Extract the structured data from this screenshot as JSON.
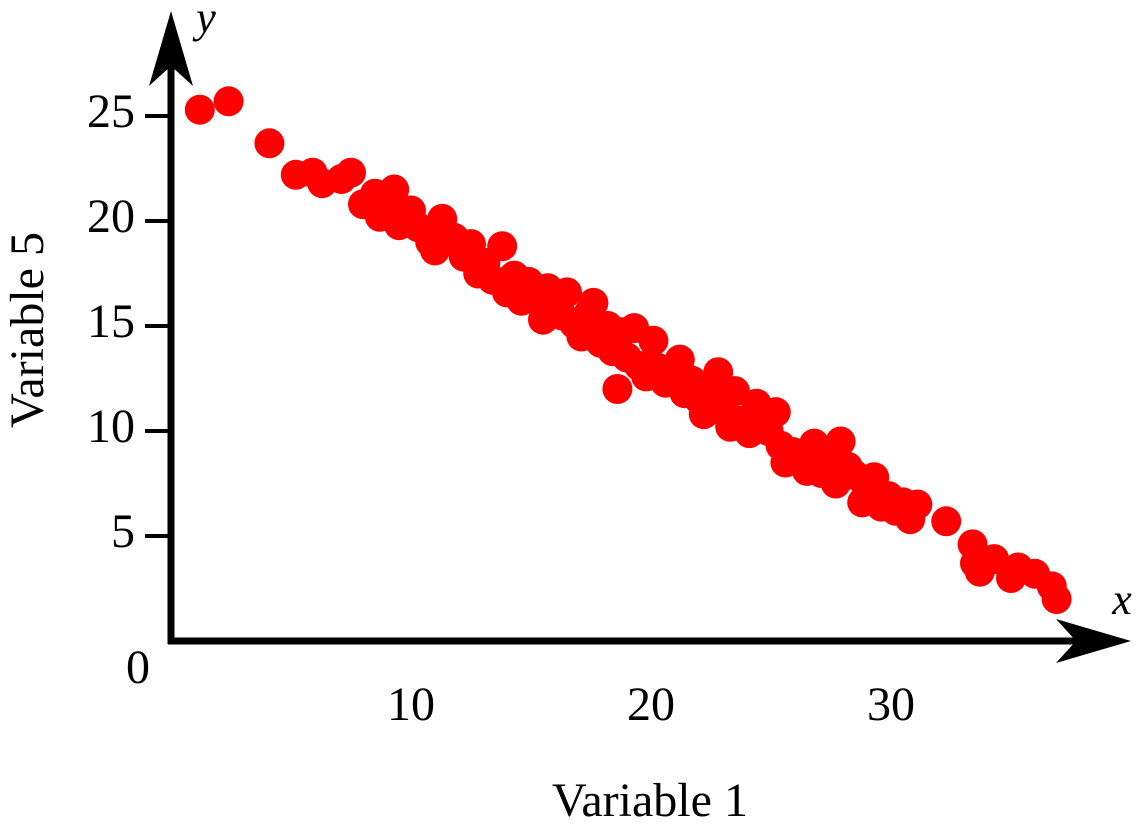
{
  "chart_data": {
    "type": "scatter",
    "x_label": "Variable 1",
    "y_label": "Variable 5",
    "x_symbol": "x",
    "y_symbol": "y",
    "origin_label": "0",
    "xlim": [
      0,
      40
    ],
    "ylim": [
      0,
      30
    ],
    "xticks": [
      10,
      20,
      30
    ],
    "yticks": [
      5,
      10,
      15,
      20,
      25
    ],
    "series": [
      {
        "color": "#ff0000",
        "x": [
          1.2,
          2.4,
          4.1,
          5.2,
          5.9,
          6.3,
          7.1,
          7.5,
          8.0,
          8.5,
          8.7,
          9.0,
          9.3,
          9.5,
          10.0,
          10.3,
          10.8,
          11.0,
          11.3,
          11.8,
          12.2,
          12.5,
          12.8,
          13.1,
          13.4,
          13.8,
          14.0,
          14.3,
          14.6,
          14.9,
          15.2,
          15.5,
          15.7,
          16.0,
          16.3,
          16.5,
          16.8,
          17.1,
          17.4,
          17.6,
          17.9,
          18.2,
          18.4,
          18.6,
          18.8,
          19.0,
          19.3,
          19.5,
          19.8,
          20.1,
          20.3,
          20.6,
          20.9,
          21.2,
          21.4,
          21.7,
          22.0,
          22.2,
          22.5,
          22.8,
          23.0,
          23.3,
          23.5,
          23.8,
          24.1,
          24.4,
          24.6,
          24.9,
          25.2,
          25.4,
          25.6,
          25.9,
          26.2,
          26.5,
          26.8,
          27.1,
          27.4,
          27.7,
          27.9,
          28.2,
          28.5,
          28.8,
          29.0,
          29.3,
          29.6,
          29.9,
          30.2,
          30.5,
          30.8,
          31.1,
          32.3,
          33.4,
          33.5,
          33.7,
          34.3,
          35.0,
          35.3,
          36.0,
          36.7,
          36.9
        ],
        "values": [
          25.3,
          25.7,
          23.7,
          22.2,
          22.3,
          21.8,
          22.0,
          22.3,
          20.8,
          21.3,
          20.2,
          21.0,
          21.5,
          19.8,
          20.5,
          19.7,
          19.0,
          18.6,
          20.1,
          19.2,
          18.3,
          18.9,
          17.5,
          18.0,
          17.2,
          18.8,
          16.6,
          17.4,
          16.2,
          17.1,
          16.5,
          15.3,
          16.8,
          16.0,
          15.5,
          16.6,
          15.1,
          14.5,
          15.6,
          16.1,
          14.2,
          15.0,
          13.8,
          12.0,
          14.7,
          13.5,
          14.9,
          13.1,
          12.6,
          14.3,
          13.0,
          12.3,
          12.9,
          13.4,
          11.8,
          12.4,
          11.5,
          10.8,
          12.0,
          12.8,
          11.1,
          10.2,
          11.9,
          10.5,
          9.9,
          11.3,
          10.7,
          10.0,
          10.9,
          9.3,
          8.5,
          9.0,
          8.7,
          8.1,
          9.4,
          8.0,
          8.8,
          7.5,
          9.5,
          8.3,
          7.9,
          6.6,
          7.2,
          7.8,
          6.4,
          6.9,
          6.2,
          6.6,
          5.8,
          6.5,
          5.7,
          4.6,
          3.7,
          3.3,
          3.9,
          3.0,
          3.5,
          3.2,
          2.6,
          2.0
        ]
      }
    ]
  }
}
